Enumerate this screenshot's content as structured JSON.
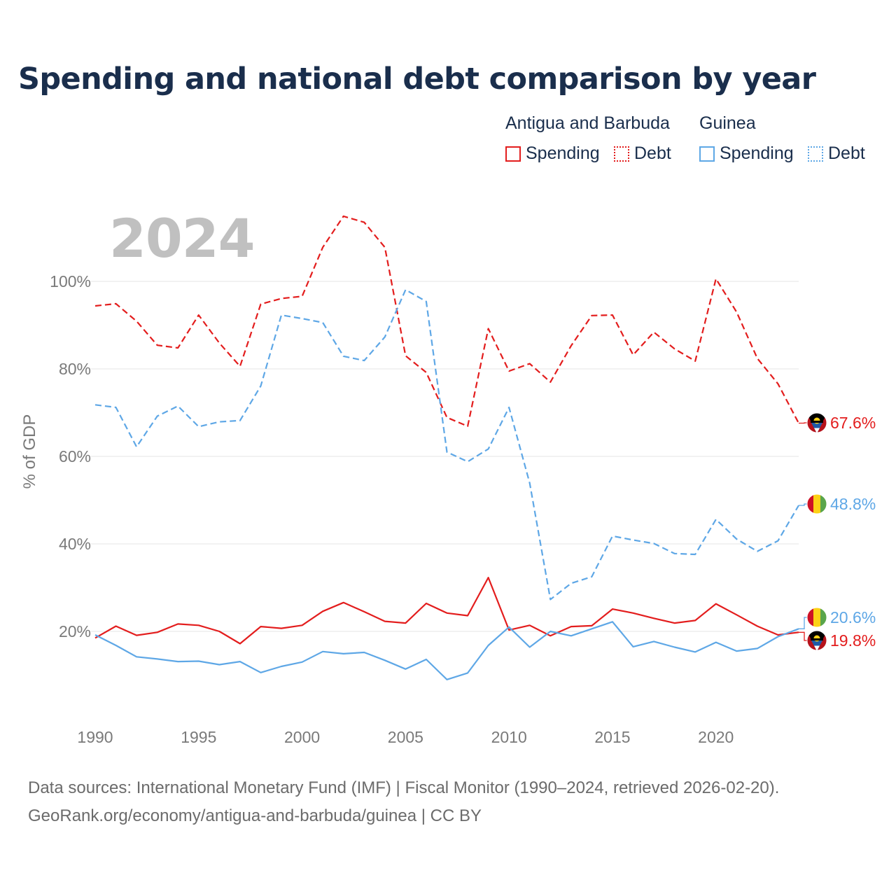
{
  "title": "Spending and national debt comparison by year",
  "legend": {
    "groups": [
      {
        "name": "Antigua and Barbuda",
        "items": [
          {
            "label": "Spending"
          },
          {
            "label": "Debt"
          }
        ]
      },
      {
        "name": "Guinea",
        "items": [
          {
            "label": "Spending"
          },
          {
            "label": "Debt"
          }
        ]
      }
    ]
  },
  "colors": {
    "antigua": "#e31d1d",
    "guinea": "#5ea7e6",
    "grid": "#e6e6e6",
    "axis_text": "#7a7a7a"
  },
  "year_display": "2024",
  "source": {
    "line1": "Data sources: International Monetary Fund (IMF) | Fiscal Monitor (1990–2024, retrieved 2026-02-20).",
    "line2": "GeoRank.org/economy/antigua-and-barbuda/guinea | CC BY"
  },
  "chart_data": {
    "type": "line",
    "title": "Spending and national debt comparison by year",
    "ylabel": "% of GDP",
    "xlabel": "",
    "xlim": [
      1990,
      2024
    ],
    "ylim": [
      0,
      115
    ],
    "x_ticks": [
      1990,
      1995,
      2000,
      2005,
      2010,
      2015,
      2020
    ],
    "y_ticks": [
      20,
      40,
      60,
      80,
      100
    ],
    "y_tick_labels": [
      "20%",
      "40%",
      "60%",
      "80%",
      "100%"
    ],
    "grid": true,
    "x": [
      1990,
      1991,
      1992,
      1993,
      1994,
      1995,
      1996,
      1997,
      1998,
      1999,
      2000,
      2001,
      2002,
      2003,
      2004,
      2005,
      2006,
      2007,
      2008,
      2009,
      2010,
      2011,
      2012,
      2013,
      2014,
      2015,
      2016,
      2017,
      2018,
      2019,
      2020,
      2021,
      2022,
      2023,
      2024
    ],
    "series": [
      {
        "name": "Antigua and Barbuda Debt",
        "country": "antigua",
        "style": "dashed",
        "values": [
          94.4,
          94.9,
          90.9,
          85.4,
          84.8,
          92.3,
          85.9,
          80.6,
          94.8,
          96.1,
          96.6,
          107.8,
          114.9,
          113.5,
          107.8,
          83.0,
          79.2,
          68.9,
          66.9,
          89.2,
          79.5,
          81.2,
          77.0,
          85.3,
          92.2,
          92.3,
          83.2,
          88.4,
          84.6,
          81.8,
          100.6,
          93.0,
          82.4,
          76.6,
          67.6
        ],
        "end_label": "67.6%"
      },
      {
        "name": "Guinea Debt",
        "country": "guinea",
        "style": "dashed",
        "values": [
          71.8,
          71.2,
          62.2,
          69.2,
          71.5,
          66.8,
          67.9,
          68.2,
          76.1,
          92.3,
          91.5,
          90.6,
          82.9,
          81.9,
          87.3,
          98.1,
          95.4,
          61.0,
          58.8,
          61.7,
          71.2,
          53.9,
          27.3,
          31.0,
          32.5,
          41.8,
          40.9,
          40.1,
          37.8,
          37.6,
          45.6,
          41.1,
          38.3,
          40.7,
          48.8
        ],
        "end_label": "48.8%"
      },
      {
        "name": "Antigua and Barbuda Spending",
        "country": "antigua",
        "style": "solid",
        "values": [
          18.5,
          21.2,
          19.1,
          19.8,
          21.7,
          21.4,
          20.0,
          17.2,
          21.1,
          20.7,
          21.4,
          24.6,
          26.6,
          24.5,
          22.3,
          21.9,
          26.4,
          24.2,
          23.6,
          32.3,
          20.3,
          21.4,
          19.0,
          21.1,
          21.3,
          25.1,
          24.2,
          23.0,
          21.9,
          22.5,
          26.3,
          23.8,
          21.2,
          19.2,
          19.8
        ],
        "end_label": "19.8%"
      },
      {
        "name": "Guinea Spending",
        "country": "guinea",
        "style": "solid",
        "values": [
          19.2,
          16.8,
          14.2,
          13.7,
          13.1,
          13.2,
          12.4,
          13.1,
          10.6,
          12.0,
          13.0,
          15.4,
          14.9,
          15.2,
          13.4,
          11.4,
          13.6,
          9.0,
          10.5,
          16.8,
          21.0,
          16.4,
          20.0,
          19.0,
          20.6,
          22.2,
          16.5,
          17.7,
          16.4,
          15.3,
          17.5,
          15.5,
          16.1,
          18.8,
          20.6
        ],
        "end_label": "20.6%"
      }
    ]
  }
}
